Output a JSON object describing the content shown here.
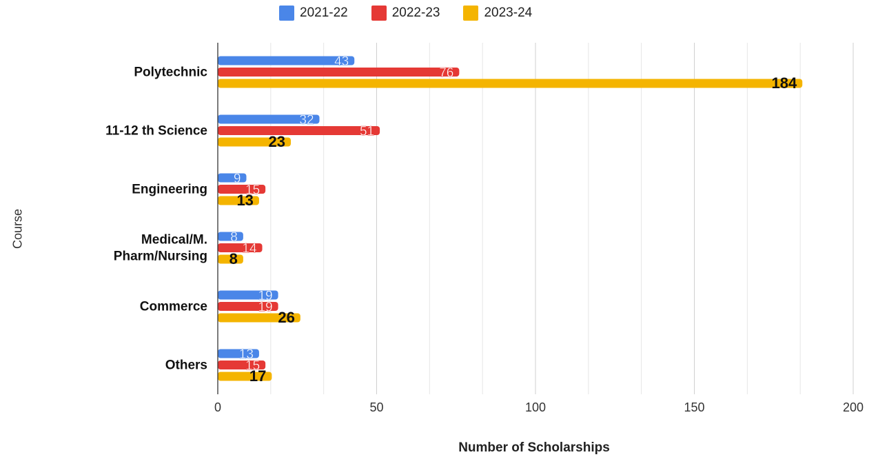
{
  "chart_data": {
    "type": "bar",
    "orientation": "horizontal",
    "categories": [
      "Polytechnic",
      "11-12 th Science",
      "Engineering",
      "Medical/M. Pharm/Nursing",
      "Commerce",
      "Others"
    ],
    "category_lines": [
      [
        "Polytechnic"
      ],
      [
        "11-12 th Science"
      ],
      [
        "Engineering"
      ],
      [
        "Medical/M.",
        "Pharm/Nursing"
      ],
      [
        "Commerce"
      ],
      [
        "Others"
      ]
    ],
    "series": [
      {
        "name": "2021-22",
        "color": "#4a86e8",
        "values": [
          43,
          32,
          9,
          8,
          19,
          13
        ]
      },
      {
        "name": "2022-23",
        "color": "#e53935",
        "values": [
          76,
          51,
          15,
          14,
          19,
          15
        ]
      },
      {
        "name": "2023-24",
        "color": "#f4b400",
        "values": [
          184,
          23,
          13,
          8,
          26,
          17
        ]
      }
    ],
    "xlabel": "Number of Scholarships",
    "ylabel": "Course",
    "xlim": [
      0,
      200
    ],
    "xticks": [
      0,
      50,
      100,
      150,
      200
    ],
    "grid": true,
    "legend": "top"
  }
}
